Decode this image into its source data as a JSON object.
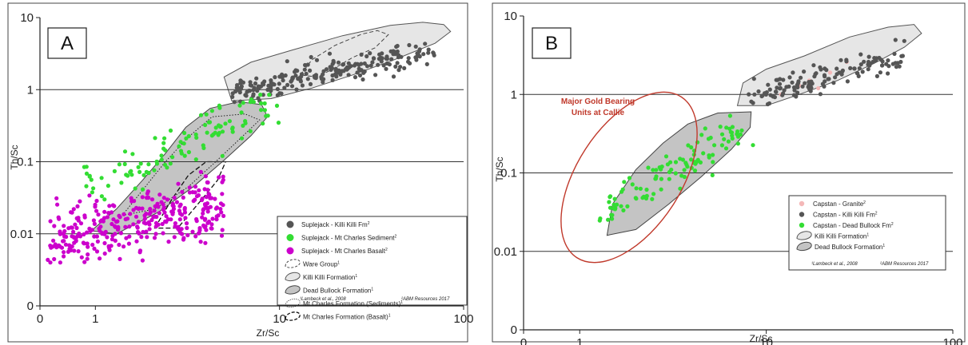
{
  "chart_data": [
    {
      "type": "scatter",
      "panel_label": "A",
      "xlabel": "Zr/Sc",
      "ylabel": "Th/Sc",
      "x_scale": "log",
      "y_scale": "log",
      "xlim": [
        0.5,
        100
      ],
      "ylim": [
        0.001,
        10
      ],
      "x_ticks": [
        {
          "value": 0.5,
          "label": "0"
        },
        {
          "value": 1,
          "label": "1"
        },
        {
          "value": 10,
          "label": "10"
        },
        {
          "value": 100,
          "label": "100"
        }
      ],
      "y_ticks": [
        {
          "value": 0.001,
          "label": "0"
        },
        {
          "value": 0.01,
          "label": "0.01"
        },
        {
          "value": 0.1,
          "label": "0.1"
        },
        {
          "value": 1,
          "label": "1"
        },
        {
          "value": 10,
          "label": "10"
        }
      ],
      "gridlines_y": [
        0.01,
        0.1,
        1
      ],
      "series": [
        {
          "name": "Suplejack - Killi Killi Fm",
          "sup": "2",
          "color": "#555555",
          "x_range": [
            5,
            70
          ],
          "y_range": [
            0.6,
            5.5
          ],
          "approx_count": 220,
          "x": [],
          "y": []
        },
        {
          "name": "Suplejack - Mt Charles Sediment",
          "sup": "2",
          "color": "#33dd33",
          "x_range": [
            0.45,
            12
          ],
          "y_range": [
            0.03,
            0.8
          ],
          "approx_count": 110,
          "x": [],
          "y": []
        },
        {
          "name": "Suplejack - Mt Charles Basalt",
          "sup": "2",
          "color": "#cc00cc",
          "x_range": [
            0.55,
            6
          ],
          "y_range": [
            0.004,
            0.1
          ],
          "approx_count": 330,
          "x": [],
          "y": []
        }
      ],
      "fields": [
        {
          "name": "Ware Group",
          "sup": "1",
          "style": "dashed"
        },
        {
          "name": "Killi Killi Formation",
          "sup": "1",
          "style": "light-fill"
        },
        {
          "name": "Dead Bullock Formation",
          "sup": "1",
          "style": "dark-fill"
        },
        {
          "name": "Mt Charles Formation (Sediments)",
          "sup": "1",
          "style": "dotted"
        },
        {
          "name": "Mt Charles Formation (Basalt)",
          "sup": "1",
          "style": "dashed-bold"
        }
      ],
      "legend_position": "bottom-right",
      "citations": [
        "¹Lambeck et al., 2008",
        "²ABM Resources 2017"
      ]
    },
    {
      "type": "scatter",
      "panel_label": "B",
      "xlabel": "Zr/Sc",
      "ylabel": "Th/Sc",
      "x_scale": "log",
      "y_scale": "log",
      "xlim": [
        0.5,
        100
      ],
      "ylim": [
        0.001,
        10
      ],
      "x_ticks": [
        {
          "value": 0.5,
          "label": "0"
        },
        {
          "value": 1,
          "label": "1"
        },
        {
          "value": 10,
          "label": "10"
        },
        {
          "value": 100,
          "label": "100"
        }
      ],
      "y_ticks": [
        {
          "value": 0.001,
          "label": "0"
        },
        {
          "value": 0.01,
          "label": "0.01"
        },
        {
          "value": 0.1,
          "label": "0.1"
        },
        {
          "value": 1,
          "label": "1"
        },
        {
          "value": 10,
          "label": "10"
        }
      ],
      "gridlines_y": [
        0.01,
        0.1,
        1
      ],
      "series": [
        {
          "name": "Capstan - Granite",
          "sup": "2",
          "color": "#f4b8b8",
          "x": [
            15,
            17,
            22,
            27,
            12,
            19
          ],
          "y": [
            1.3,
            1.5,
            1.9,
            2.6,
            1.0,
            1.2
          ]
        },
        {
          "name": "Capstan - Killi Killi Fm",
          "sup": "2",
          "color": "#555555",
          "x_range": [
            7.5,
            60
          ],
          "y_range": [
            0.75,
            5
          ],
          "approx_count": 130,
          "x": [],
          "y": []
        },
        {
          "name": "Capstan - Dead Bullock Fm",
          "sup": "2",
          "color": "#33dd33",
          "x_range": [
            1.2,
            8
          ],
          "y_range": [
            0.018,
            0.6
          ],
          "approx_count": 110,
          "x": [],
          "y": []
        }
      ],
      "fields": [
        {
          "name": "Killi Killi Formation",
          "sup": "1",
          "style": "light-fill"
        },
        {
          "name": "Dead Bullock Formation",
          "sup": "1",
          "style": "dark-fill"
        }
      ],
      "annotation": {
        "text": [
          "Major Gold Bearing",
          "Units at Callie"
        ],
        "color": "#c0392b"
      },
      "legend_position": "bottom-right",
      "citations": [
        "¹Lambeck et al., 2008",
        "²ABM Resources 2017"
      ]
    }
  ]
}
